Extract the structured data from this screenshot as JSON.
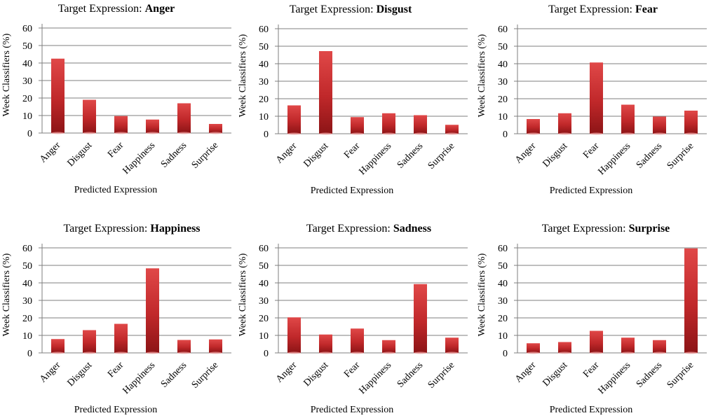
{
  "colors": {
    "bar_top": "#e04848",
    "bar_mid": "#c0282a",
    "bar_bottom": "#8c1416",
    "grid": "#7f7f7f"
  },
  "chart_data": [
    {
      "type": "bar",
      "title_prefix": "Target Expression: ",
      "title_emphasis": "Anger",
      "categories": [
        "Anger",
        "Disgust",
        "Fear",
        "Happiness",
        "Sadness",
        "Surprise"
      ],
      "values": [
        42.5,
        19,
        9.7,
        7.7,
        17,
        5.2
      ],
      "xlabel": "Predicted Expression",
      "ylabel": "Week Classifiers (%)",
      "ylim": [
        0,
        60
      ],
      "yticks": [
        0,
        10,
        20,
        30,
        40,
        50,
        60
      ],
      "grid": true
    },
    {
      "type": "bar",
      "title_prefix": "Target Expression: ",
      "title_emphasis": "Disgust",
      "categories": [
        "Anger",
        "Disgust",
        "Fear",
        "Happiness",
        "Sadness",
        "Surprise"
      ],
      "values": [
        16.2,
        47.2,
        9.5,
        11.7,
        10.6,
        5.1
      ],
      "xlabel": "Predicted Expression",
      "ylabel": "Week Classifiers (%)",
      "ylim": [
        0,
        60
      ],
      "yticks": [
        0,
        10,
        20,
        30,
        40,
        50,
        60
      ],
      "grid": true
    },
    {
      "type": "bar",
      "title_prefix": "Target Expression: ",
      "title_emphasis": "Fear",
      "categories": [
        "Anger",
        "Disgust",
        "Fear",
        "Happiness",
        "Sadness",
        "Surprise"
      ],
      "values": [
        8.4,
        11.7,
        40.7,
        16.6,
        9.8,
        13.2
      ],
      "xlabel": "Predicted Expression",
      "ylabel": "Week Classifiers (%)",
      "ylim": [
        0,
        60
      ],
      "yticks": [
        0,
        10,
        20,
        30,
        40,
        50,
        60
      ],
      "grid": true
    },
    {
      "type": "bar",
      "title_prefix": "Target Expression: ",
      "title_emphasis": "Happiness",
      "categories": [
        "Anger",
        "Disgust",
        "Fear",
        "Happiness",
        "Sadness",
        "Surprise"
      ],
      "values": [
        7.9,
        13,
        16.6,
        48.3,
        7.4,
        7.7
      ],
      "xlabel": "Predicted Expression",
      "ylabel": "Week Classifiers (%)",
      "ylim": [
        0,
        60
      ],
      "yticks": [
        0,
        10,
        20,
        30,
        40,
        50,
        60
      ],
      "grid": true
    },
    {
      "type": "bar",
      "title_prefix": "Target Expression: ",
      "title_emphasis": "Sadness",
      "categories": [
        "Anger",
        "Disgust",
        "Fear",
        "Happiness",
        "Sadness",
        "Surprise"
      ],
      "values": [
        20.3,
        10.5,
        13.9,
        7.3,
        39.3,
        8.7
      ],
      "xlabel": "Predicted Expression",
      "ylabel": "Week Classifiers (%)",
      "ylim": [
        0,
        60
      ],
      "yticks": [
        0,
        10,
        20,
        30,
        40,
        50,
        60
      ],
      "grid": true
    },
    {
      "type": "bar",
      "title_prefix": "Target Expression: ",
      "title_emphasis": "Surprise",
      "categories": [
        "Anger",
        "Disgust",
        "Fear",
        "Happiness",
        "Sadness",
        "Surprise"
      ],
      "values": [
        5.5,
        6.2,
        12.6,
        8.7,
        7.3,
        59.7
      ],
      "xlabel": "Predicted Expression",
      "ylabel": "Week Classifiers (%)",
      "ylim": [
        0,
        60
      ],
      "yticks": [
        0,
        10,
        20,
        30,
        40,
        50,
        60
      ],
      "grid": true
    }
  ]
}
